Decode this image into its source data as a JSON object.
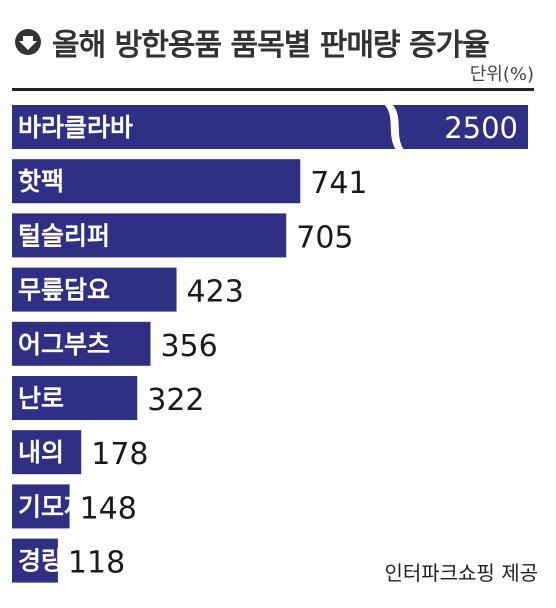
{
  "header": {
    "title": "올해 방한용품 품목별 판매량 증가율",
    "icon": "down-arrow-circle-icon",
    "unit": "단위(%)"
  },
  "source": "인터파크쇼핑 제공",
  "colors": {
    "bar": "#2f2f86",
    "label": "#ffffff",
    "value": "#1a1a1a"
  },
  "chart_data": {
    "type": "bar",
    "orientation": "horizontal",
    "title": "올해 방한용품 품목별 판매량 증가율",
    "unit": "단위(%)",
    "categories": [
      "바라클라바",
      "핫팩",
      "털슬리퍼",
      "무릎담요",
      "어그부츠",
      "난로",
      "내의",
      "기모제품",
      "경량패딩"
    ],
    "values": [
      2500,
      741,
      705,
      423,
      356,
      322,
      178,
      148,
      118
    ],
    "value_labels": [
      "2500",
      "741",
      "705",
      "423",
      "356",
      "322",
      "178",
      "148",
      "118"
    ],
    "axis_break": true,
    "grid": false,
    "legend": "none"
  }
}
